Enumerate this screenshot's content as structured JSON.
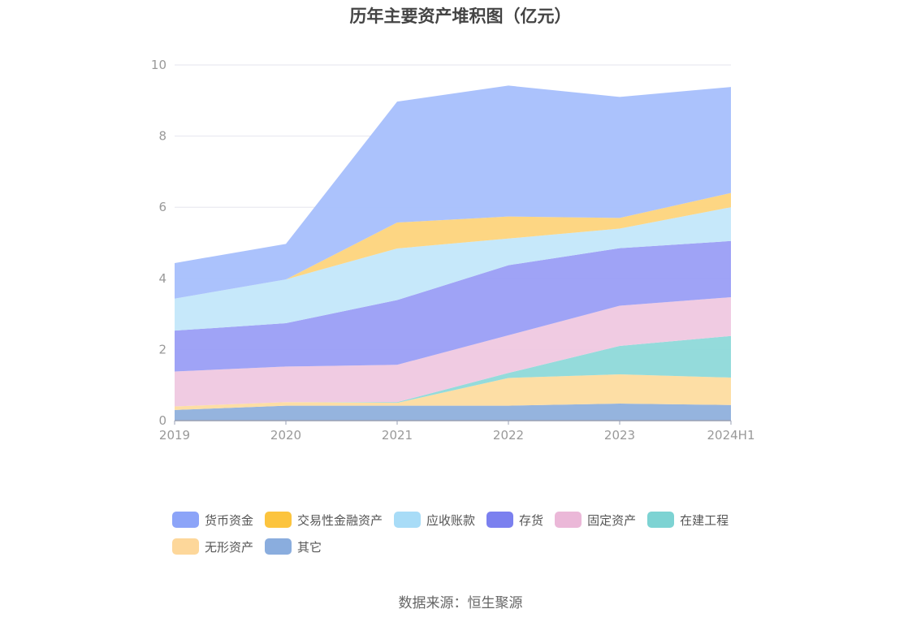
{
  "source_text": "数据来源：恒生聚源",
  "chart_data": {
    "type": "area",
    "stacked": true,
    "title": "历年主要资产堆积图（亿元）",
    "xlabel": "",
    "ylabel": "",
    "categories": [
      "2019",
      "2020",
      "2021",
      "2022",
      "2023",
      "2024H1"
    ],
    "ylim": [
      0,
      10
    ],
    "yticks": [
      0,
      2,
      4,
      6,
      8,
      10
    ],
    "grid": true,
    "legend_position": "bottom",
    "series": [
      {
        "name": "其它",
        "color": "#8fb0dc",
        "values": [
          0.3,
          0.42,
          0.42,
          0.42,
          0.48,
          0.44
        ]
      },
      {
        "name": "无形资产",
        "color": "#fddca0",
        "values": [
          0.1,
          0.1,
          0.08,
          0.78,
          0.82,
          0.77
        ]
      },
      {
        "name": "在建工程",
        "color": "#8ed9d9",
        "values": [
          0.0,
          0.0,
          0.02,
          0.14,
          0.8,
          1.17
        ]
      },
      {
        "name": "固定资产",
        "color": "#efc8e0",
        "values": [
          0.98,
          1.0,
          1.05,
          1.06,
          1.13,
          1.09
        ]
      },
      {
        "name": "存货",
        "color": "#9a9ef5",
        "values": [
          1.15,
          1.22,
          1.82,
          1.97,
          1.62,
          1.58
        ]
      },
      {
        "name": "应收账款",
        "color": "#c3e7fa",
        "values": [
          0.9,
          1.23,
          1.45,
          0.75,
          0.55,
          0.95
        ]
      },
      {
        "name": "交易性金融资产",
        "color": "#fdd47c",
        "values": [
          0.0,
          0.0,
          0.73,
          0.62,
          0.3,
          0.4
        ]
      },
      {
        "name": "货币资金",
        "color": "#a6bffc",
        "values": [
          1.0,
          1.0,
          3.4,
          3.68,
          3.4,
          2.98
        ]
      }
    ]
  },
  "legend": [
    {
      "name": "货币资金",
      "color": "#8ca4f8"
    },
    {
      "name": "交易性金融资产",
      "color": "#fcc43e"
    },
    {
      "name": "应收账款",
      "color": "#a8dcf7"
    },
    {
      "name": "存货",
      "color": "#7b80ef"
    },
    {
      "name": "固定资产",
      "color": "#ebb8d8"
    },
    {
      "name": "在建工程",
      "color": "#7dd3d3"
    },
    {
      "name": "无形资产",
      "color": "#fdd79a"
    },
    {
      "name": "其它",
      "color": "#8aadde"
    }
  ]
}
